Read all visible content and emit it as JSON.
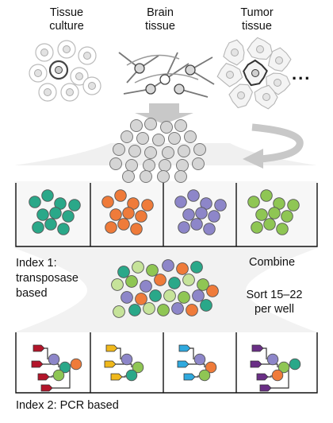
{
  "sources": {
    "tissue_culture": "Tissue\nculture",
    "brain_tissue": "Brain\ntissue",
    "tumor_tissue": "Tumor\ntissue",
    "more": "..."
  },
  "labels": {
    "index1": "Index 1:\ntransposase\nbased",
    "combine": "Combine",
    "sort": "Sort 15–22\nper well",
    "index2": "Index 2: PCR based"
  },
  "colors": {
    "teal": "#2aa889",
    "orange": "#ef7b3a",
    "purple": "#8d86c9",
    "green": "#8fc654",
    "light_green": "#c6e39a",
    "gray_cell": "#d5d5d5",
    "arrow": "#c8c8c8",
    "tag_red": "#b3152a",
    "tag_yellow": "#f0b81b",
    "tag_blue": "#2fa9de",
    "tag_purple": "#6a2f86"
  }
}
